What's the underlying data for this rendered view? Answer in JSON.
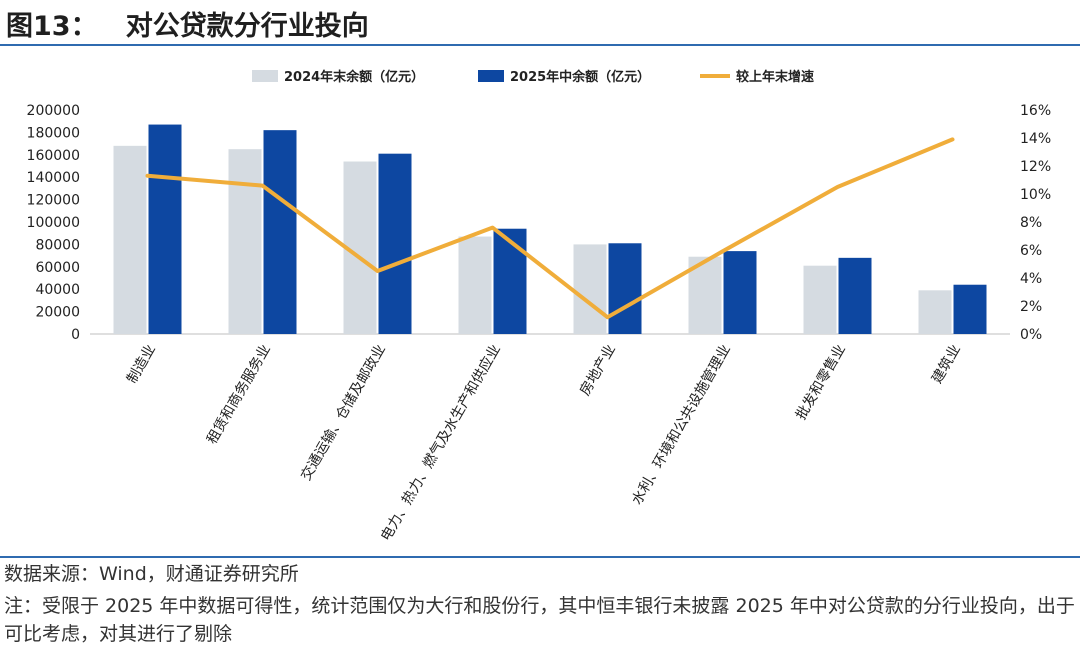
{
  "figure": {
    "title": "图13：   对公贷款分行业投向",
    "source": "数据来源：Wind，财通证券研究所",
    "note": "注：受限于 2025 年中数据可得性，统计范围仅为大行和股份行，其中恒丰银行未披露 2025 年中对公贷款的分行业投向，出于可比考虑，对其进行了剔除"
  },
  "colors": {
    "bar2024": "#d5dbe1",
    "bar2025": "#0d47a1",
    "line": "#f0ad3a",
    "rule": "#2f6bb0"
  },
  "chart_data": {
    "type": "bar",
    "categories": [
      "制造业",
      "租赁和商务服务业",
      "交通运输、仓储及邮政业",
      "电力、热力、燃气及水生产和供应业",
      "房地产业",
      "水利、环境和公共设施管理业",
      "批发和零售业",
      "建筑业"
    ],
    "series": [
      {
        "name": "2024年末余额（亿元）",
        "type": "bar",
        "axis": "left",
        "values": [
          168000,
          165000,
          154000,
          87000,
          80000,
          69000,
          61000,
          39000
        ]
      },
      {
        "name": "2025年中余额（亿元）",
        "type": "bar",
        "axis": "left",
        "values": [
          187000,
          182000,
          161000,
          94000,
          81000,
          74000,
          68000,
          44000
        ]
      },
      {
        "name": "较上年末增速",
        "type": "line",
        "axis": "right",
        "values": [
          11.3,
          10.6,
          4.5,
          7.6,
          1.2,
          5.9,
          10.5,
          13.9
        ]
      }
    ],
    "y_left": {
      "min": 0,
      "max": 200000,
      "ticks": [
        "0",
        "20000",
        "40000",
        "60000",
        "80000",
        "100000",
        "120000",
        "140000",
        "160000",
        "180000",
        "200000"
      ]
    },
    "y_right": {
      "min": 0,
      "max": 16,
      "ticks": [
        "0%",
        "2%",
        "4%",
        "6%",
        "8%",
        "10%",
        "12%",
        "14%",
        "16%"
      ]
    },
    "legend_position": "top-center",
    "grid": false
  }
}
